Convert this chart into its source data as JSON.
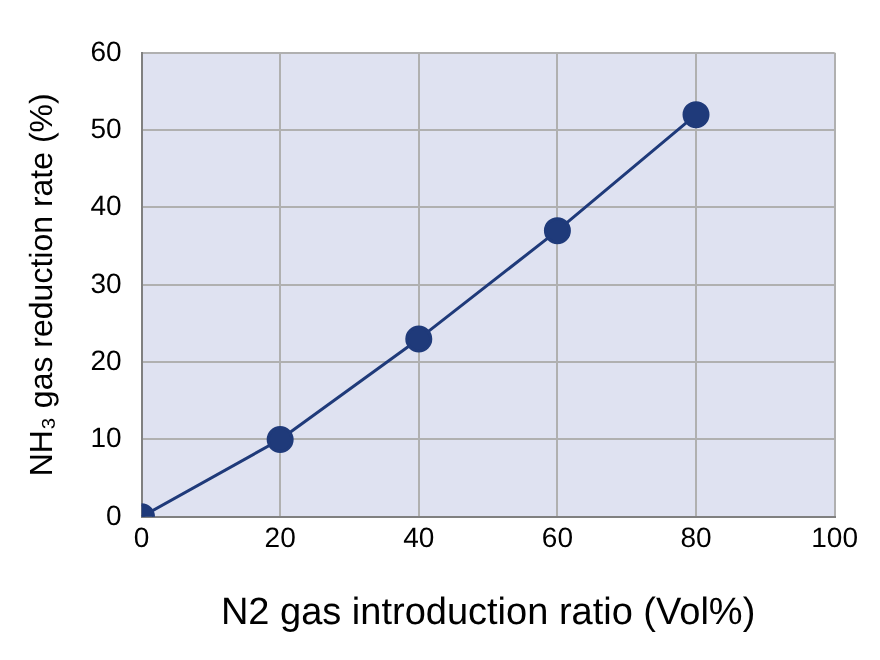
{
  "chart_data": {
    "type": "line",
    "xlabel": "N2 gas introduction ratio (Vol%)",
    "ylabel": "NH₃ gas reduction rate (%)",
    "x": [
      0,
      20,
      40,
      60,
      80
    ],
    "series": [
      {
        "color": "#1f3a7a",
        "values": [
          0,
          10,
          23,
          37,
          52
        ]
      }
    ],
    "xlim": [
      0,
      100
    ],
    "xticks": [
      0,
      20,
      40,
      60,
      80,
      100
    ],
    "ylim": [
      0,
      60
    ],
    "yticks": [
      0,
      10,
      20,
      30,
      40,
      50,
      60
    ],
    "grid": true,
    "legend": false,
    "marker": "circle",
    "line_style": "solid"
  }
}
